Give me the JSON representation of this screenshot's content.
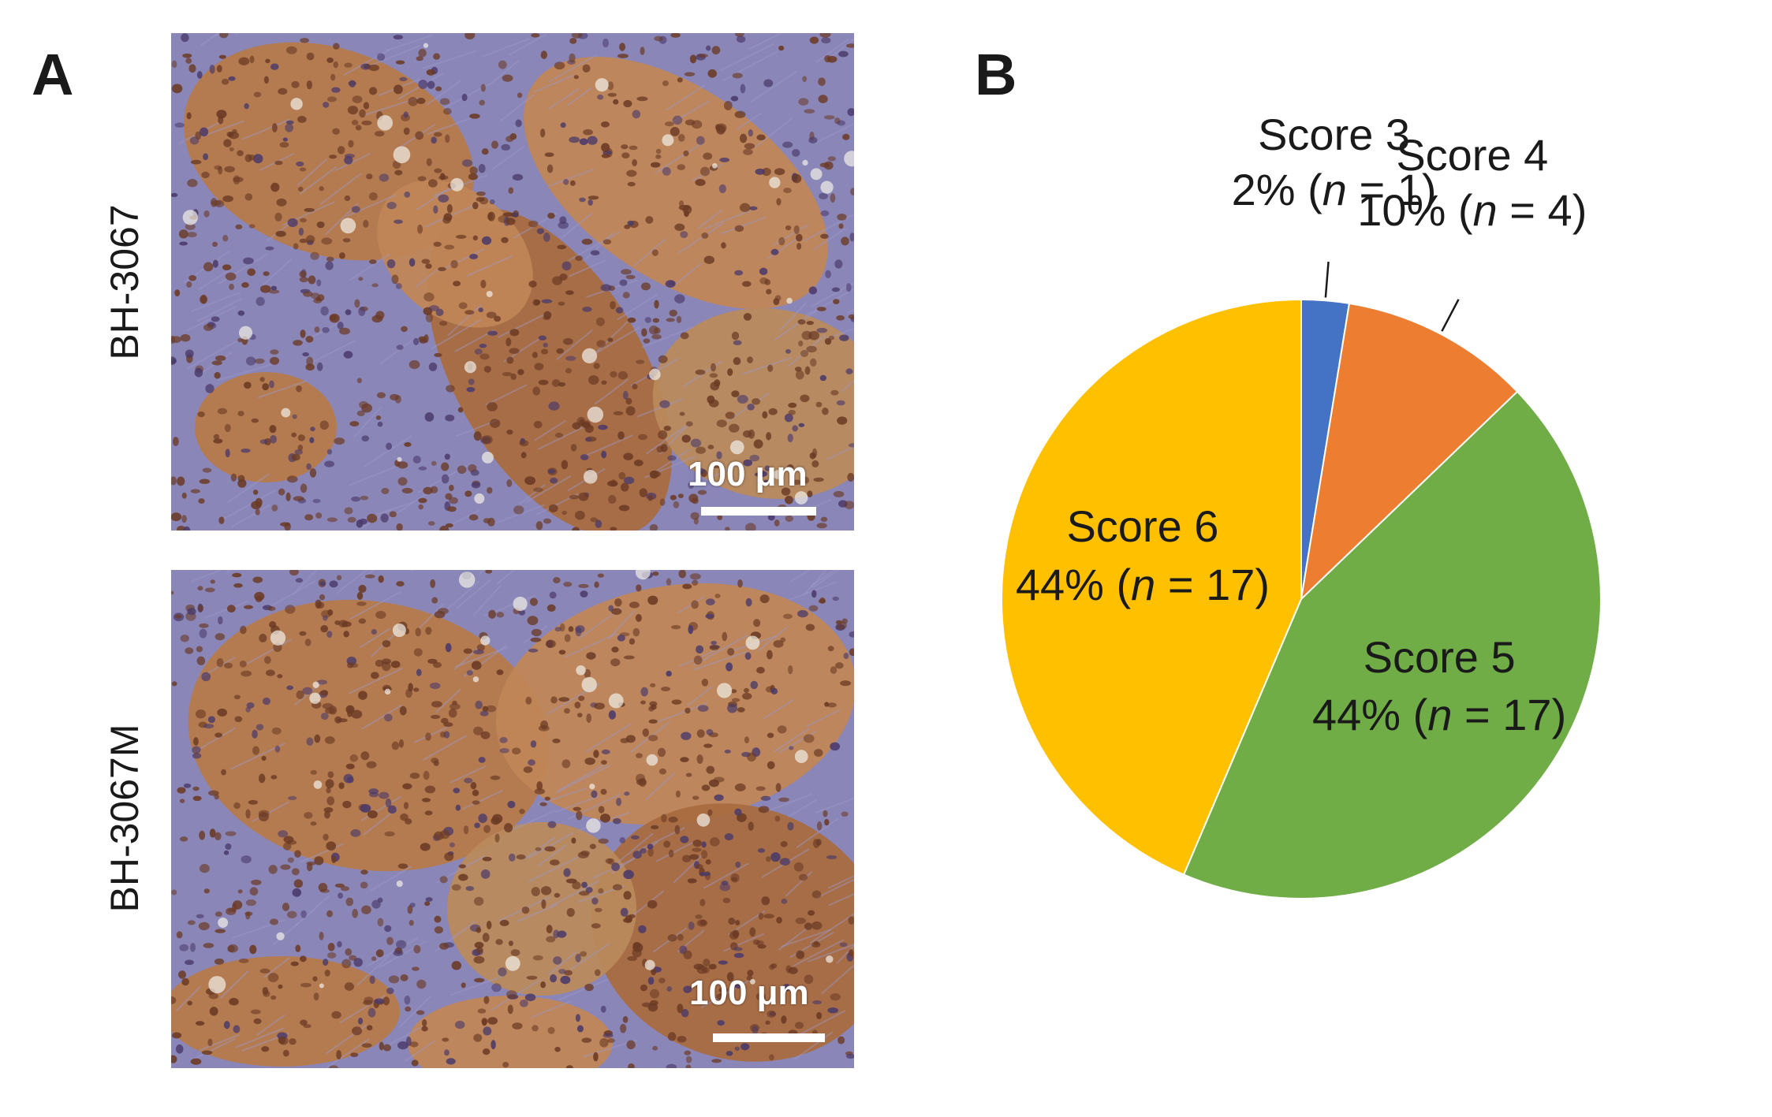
{
  "panels": {
    "a_letter": "A",
    "b_letter": "B"
  },
  "micrographs": {
    "top": {
      "label": "BH-3067",
      "scale_bar": "100 μm"
    },
    "bottom": {
      "label": "BH-3067M",
      "scale_bar": "100 μm"
    }
  },
  "chart_data": {
    "type": "pie",
    "slices": [
      {
        "name": "Score 3",
        "label_line2": "2% (n = 1)",
        "percent": 2,
        "n": 1,
        "color": "#4472C4"
      },
      {
        "name": "Score 4",
        "label_line2": "10% (n = 4)",
        "percent": 10,
        "n": 4,
        "color": "#ED7D31"
      },
      {
        "name": "Score 5",
        "label_line2": "44% (n = 17)",
        "percent": 44,
        "n": 17,
        "color": "#70AD47"
      },
      {
        "name": "Score 6",
        "label_line2": "44% (n = 17)",
        "percent": 44,
        "n": 17,
        "color": "#FFC000"
      }
    ],
    "start_angle": "12 o'clock",
    "direction": "clockwise",
    "legend": "none (direct labels)"
  }
}
